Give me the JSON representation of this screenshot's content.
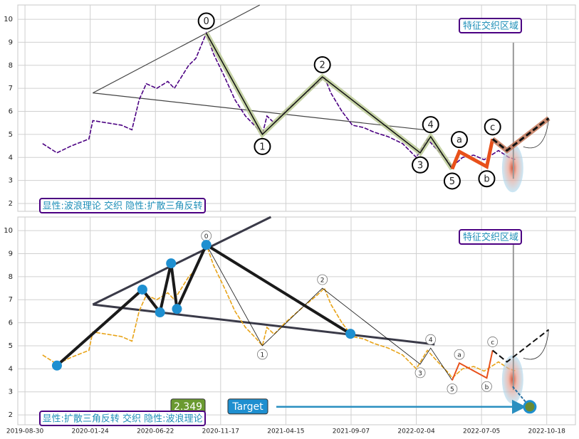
{
  "chart_data": [
    {
      "type": "line",
      "xlim": [
        -11,
        844
      ],
      "ylim": [
        1.66,
        10.62
      ],
      "yticks": [
        2,
        3,
        4,
        5,
        6,
        7,
        8,
        9,
        10
      ],
      "grid": true,
      "x": [
        27,
        49,
        71,
        98,
        104,
        126,
        148,
        164,
        175,
        186,
        202,
        219,
        229,
        240,
        251,
        262,
        278,
        289,
        306,
        322,
        338,
        355,
        364,
        371,
        382,
        399,
        415,
        431,
        448,
        459,
        469,
        486,
        502,
        519,
        535,
        557,
        579,
        600,
        617,
        633,
        650,
        655,
        671,
        688,
        704,
        726,
        742,
        753
      ],
      "series": [
        {
          "color": "#4b0082",
          "values": [
            4.6,
            4.2,
            4.5,
            4.8,
            5.6,
            5.5,
            5.4,
            5.2,
            6.5,
            7.2,
            7.0,
            7.3,
            7.0,
            7.5,
            8.0,
            8.3,
            9.4,
            8.5,
            7.5,
            6.5,
            5.8,
            5.3,
            5.0,
            5.8,
            5.5,
            6.0,
            6.4,
            6.8,
            7.2,
            7.5,
            6.8,
            6.0,
            5.4,
            5.3,
            5.1,
            4.9,
            4.6,
            4.0,
            4.8,
            4.3,
            3.8,
            3.6,
            4.0,
            4.1,
            3.9,
            4.3,
            4.0,
            3.9
          ]
        }
      ],
      "waves": {
        "labels": [
          "0",
          "1",
          "2",
          "3",
          "4",
          "5"
        ],
        "x": [
          278,
          364,
          456,
          606,
          622,
          655
        ],
        "y": [
          9.4,
          5.0,
          7.5,
          4.2,
          4.9,
          3.5
        ]
      },
      "corrective": {
        "labels": [
          "a",
          "b",
          "c"
        ],
        "x": [
          666,
          708,
          717
        ],
        "y": [
          4.25,
          3.6,
          4.8
        ]
      },
      "extension": {
        "x": [
          739,
          803
        ],
        "y": [
          4.3,
          5.7
        ]
      },
      "triangle_upper": {
        "x": [
          104,
          360
        ],
        "y": [
          6.8,
          10.62
        ]
      },
      "triangle_lower": {
        "x": [
          104,
          628
        ],
        "y": [
          6.8,
          5.15
        ]
      },
      "zone_label": "特征交织区域",
      "caption": "显性:波浪理论 交织 隐性:扩散三角反转"
    },
    {
      "type": "line",
      "xlim": [
        -11,
        844
      ],
      "ylim": [
        1.57,
        10.59
      ],
      "yticks": [
        2,
        3,
        4,
        5,
        6,
        7,
        8,
        9,
        10
      ],
      "grid": true,
      "xticks": [
        {
          "value": 0,
          "label": "2019-08-30"
        },
        {
          "value": 100,
          "label": "2020-01-24"
        },
        {
          "value": 200,
          "label": "2020-06-22"
        },
        {
          "value": 300,
          "label": "2020-11-17"
        },
        {
          "value": 400,
          "label": "2021-04-15"
        },
        {
          "value": 500,
          "label": "2021-09-07"
        },
        {
          "value": 600,
          "label": "2022-02-04"
        },
        {
          "value": 700,
          "label": "2022-07-05"
        },
        {
          "value": 800,
          "label": "2022-10-18"
        }
      ],
      "x": [
        27,
        49,
        71,
        98,
        104,
        126,
        148,
        164,
        175,
        186,
        202,
        219,
        229,
        240,
        251,
        262,
        278,
        289,
        306,
        322,
        338,
        355,
        364,
        371,
        382,
        399,
        415,
        431,
        448,
        459,
        469,
        486,
        502,
        519,
        535,
        557,
        579,
        600,
        617,
        633,
        650,
        655,
        671,
        688,
        704,
        726,
        742,
        753
      ],
      "series": [
        {
          "color": "#e8a317",
          "values": [
            4.6,
            4.2,
            4.5,
            4.8,
            5.6,
            5.5,
            5.4,
            5.2,
            6.5,
            7.2,
            7.0,
            7.3,
            7.0,
            7.5,
            8.0,
            8.3,
            9.4,
            8.5,
            7.5,
            6.5,
            5.8,
            5.3,
            5.0,
            5.8,
            5.5,
            6.0,
            6.4,
            6.8,
            7.2,
            7.5,
            6.8,
            6.0,
            5.4,
            5.3,
            5.1,
            4.9,
            4.6,
            4.0,
            4.8,
            4.3,
            3.8,
            3.6,
            4.0,
            4.1,
            3.9,
            4.3,
            4.0,
            3.9
          ]
        }
      ],
      "waves": {
        "labels": [
          "0",
          "1",
          "2",
          "3",
          "4",
          "5"
        ],
        "x": [
          278,
          364,
          456,
          606,
          622,
          655
        ],
        "y": [
          9.4,
          5.0,
          7.5,
          4.2,
          4.9,
          3.5
        ]
      },
      "corrective": {
        "labels": [
          "a",
          "b",
          "c"
        ],
        "x": [
          666,
          708,
          717
        ],
        "y": [
          4.25,
          3.6,
          4.8
        ]
      },
      "extension": {
        "x": [
          739,
          803
        ],
        "y": [
          4.3,
          5.7
        ]
      },
      "triangle_upper": {
        "x": [
          104,
          377
        ],
        "y": [
          6.79,
          10.59
        ]
      },
      "triangle_lower": {
        "x": [
          104,
          628
        ],
        "y": [
          6.79,
          5.06
        ]
      },
      "pattern": {
        "x": [
          49,
          180,
          207,
          224,
          233,
          278,
          499
        ],
        "y": [
          4.14,
          7.44,
          6.45,
          8.58,
          6.6,
          9.38,
          5.52
        ]
      },
      "target": {
        "x": 774,
        "value": 2.349,
        "label": "Target"
      },
      "zone_label": "特征交织区域",
      "caption": "显性:扩散三角反转 交织 隐性:波浪理论"
    }
  ]
}
